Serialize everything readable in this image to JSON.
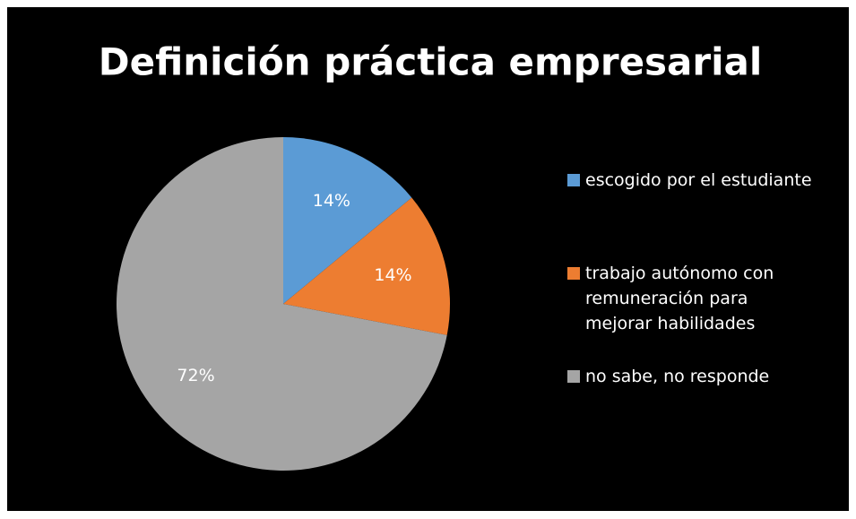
{
  "chart_data": {
    "type": "pie",
    "title": "Definición práctica empresarial",
    "categories": [
      "escogido por el estudiante",
      "trabajo autónomo con remuneración para mejorar habilidades",
      "no sabe, no responde"
    ],
    "values": [
      14,
      14,
      72
    ],
    "value_labels": [
      "14%",
      "14%",
      "72%"
    ],
    "colors": [
      "#5b9bd5",
      "#ed7d31",
      "#a5a5a5"
    ],
    "legend": "right"
  }
}
